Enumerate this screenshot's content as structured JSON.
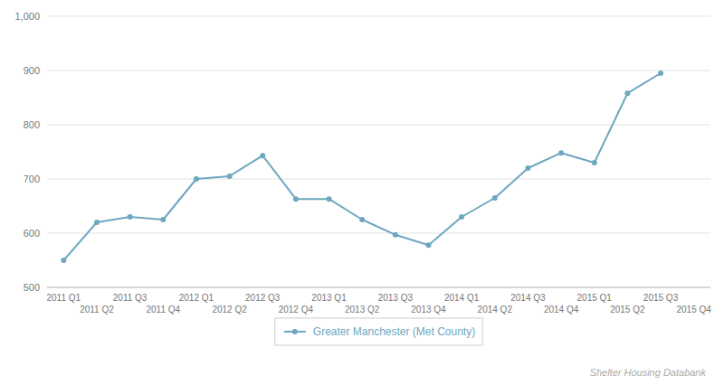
{
  "chart_data": {
    "type": "line",
    "categories": [
      "2011 Q1",
      "2011 Q2",
      "2011 Q3",
      "2011 Q4",
      "2012 Q1",
      "2012 Q2",
      "2012 Q3",
      "2012 Q4",
      "2013 Q1",
      "2013 Q2",
      "2013 Q3",
      "2013 Q4",
      "2014 Q1",
      "2014 Q2",
      "2014 Q3",
      "2014 Q4",
      "2015 Q1",
      "2015 Q2",
      "2015 Q3",
      "2015 Q4"
    ],
    "series": [
      {
        "name": "Greater Manchester (Met County)",
        "color": "#6da8c0",
        "marker": "circle",
        "values": [
          550,
          620,
          630,
          625,
          700,
          705,
          743,
          663,
          663,
          625,
          597,
          578,
          630,
          665,
          720,
          748,
          730,
          858,
          895,
          null
        ]
      }
    ],
    "ylim": [
      500,
      1000
    ],
    "yticks": [
      500,
      600,
      700,
      800,
      900,
      {
        "value": 1000,
        "label": "1,000"
      }
    ],
    "grid": true,
    "legend": "bottom",
    "annotations": [
      "Shelter Housing Databank"
    ]
  }
}
